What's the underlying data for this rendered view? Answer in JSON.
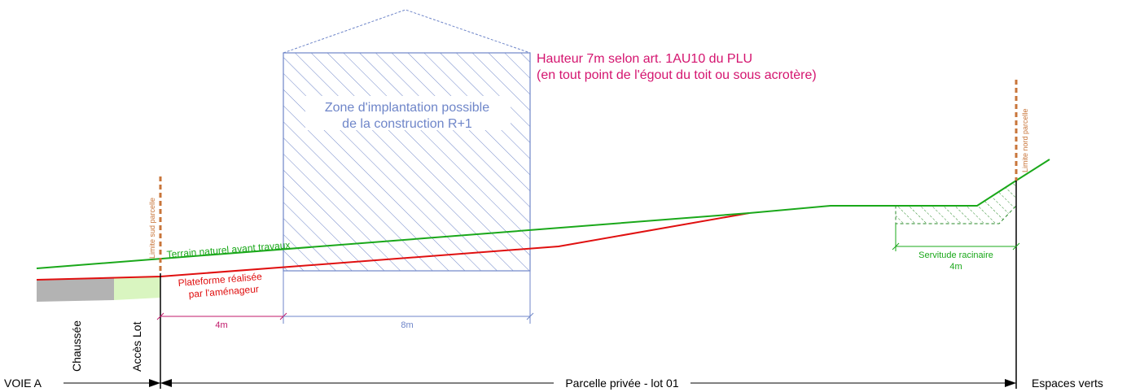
{
  "height_note": {
    "line1": "Hauteur 7m selon art. 1AU10 du PLU",
    "line2": "(en tout point de l'égout du toit ou sous acrotère)"
  },
  "zone_label": {
    "line1": "Zone d'implantation possible",
    "line2": "de la construction R+1"
  },
  "terrain_label": "Terrain naturel avant travaux",
  "plateforme_label": {
    "line1": "Plateforme réalisée",
    "line2": "par l'aménageur"
  },
  "limite_sud_label": "Limite sud parcelle",
  "limite_nord_label": "Limite nord parcelle",
  "servitude_label": {
    "line1": "Servitude racinaire",
    "line2": "4m"
  },
  "dim_4m": "4m",
  "dim_8m": "8m",
  "chaussee_label": "Chaussée",
  "acces_label": "Accès Lot",
  "voie_label": "VOIE A",
  "parcelle_label": "Parcelle privée - lot 01",
  "espaces_label": "Espaces verts",
  "colors": {
    "terrain": "#1aa81a",
    "plateforme": "#e01010",
    "zone": "#6f86c9",
    "height_note": "#d4146f",
    "limit": "#c8753a",
    "dim_4m": "#c0186a",
    "chaussee": "#b3b3b3",
    "acces": "#d9f5c0"
  }
}
